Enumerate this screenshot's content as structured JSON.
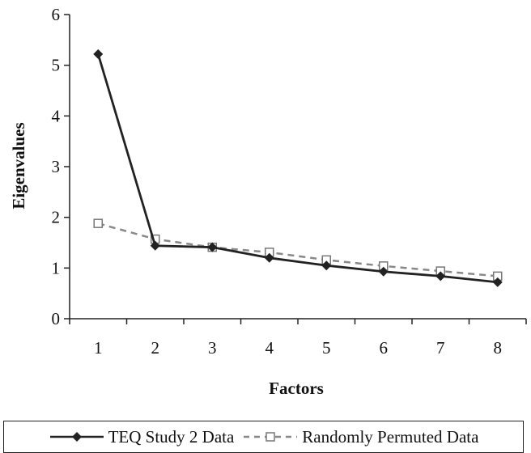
{
  "chart_data": {
    "type": "line",
    "title": "",
    "xlabel": "Factors",
    "ylabel": "Eigenvalues",
    "categories": [
      "1",
      "2",
      "3",
      "4",
      "5",
      "6",
      "7",
      "8"
    ],
    "ylim": [
      0,
      6
    ],
    "yticks": [
      "0",
      "1",
      "2",
      "3",
      "4",
      "5",
      "6"
    ],
    "grid": false,
    "legend": "bottom",
    "series": [
      {
        "name": "TEQ Study 2 Data",
        "values": [
          5.22,
          1.44,
          1.41,
          1.2,
          1.05,
          0.93,
          0.84,
          0.72
        ],
        "color": "#222222",
        "style": "solid",
        "marker": "diamond-filled"
      },
      {
        "name": "Randomly Permuted Data",
        "values": [
          1.88,
          1.57,
          1.41,
          1.31,
          1.16,
          1.04,
          0.94,
          0.84
        ],
        "color": "#888888",
        "style": "dashed",
        "marker": "square-open"
      }
    ]
  }
}
